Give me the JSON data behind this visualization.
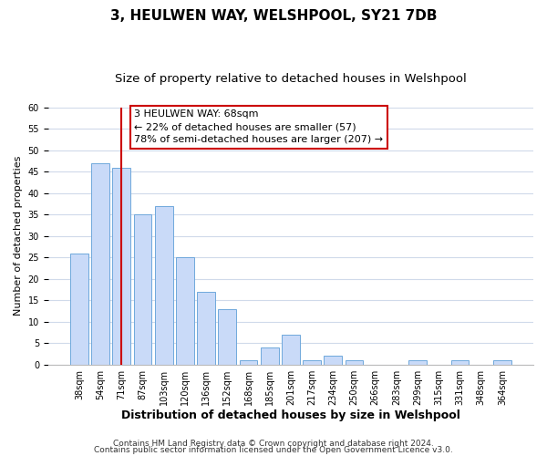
{
  "title": "3, HEULWEN WAY, WELSHPOOL, SY21 7DB",
  "subtitle": "Size of property relative to detached houses in Welshpool",
  "xlabel": "Distribution of detached houses by size in Welshpool",
  "ylabel": "Number of detached properties",
  "bar_labels": [
    "38sqm",
    "54sqm",
    "71sqm",
    "87sqm",
    "103sqm",
    "120sqm",
    "136sqm",
    "152sqm",
    "168sqm",
    "185sqm",
    "201sqm",
    "217sqm",
    "234sqm",
    "250sqm",
    "266sqm",
    "283sqm",
    "299sqm",
    "315sqm",
    "331sqm",
    "348sqm",
    "364sqm"
  ],
  "bar_values": [
    26,
    47,
    46,
    35,
    37,
    25,
    17,
    13,
    1,
    4,
    7,
    1,
    2,
    1,
    0,
    0,
    1,
    0,
    1,
    0,
    1
  ],
  "bar_color": "#c9daf8",
  "bar_edge_color": "#6fa8dc",
  "highlight_index": 2,
  "highlight_color": "#cc0000",
  "annotation_title": "3 HEULWEN WAY: 68sqm",
  "annotation_line1": "← 22% of detached houses are smaller (57)",
  "annotation_line2": "78% of semi-detached houses are larger (207) →",
  "annotation_box_color": "#ffffff",
  "annotation_box_edge": "#cc0000",
  "ylim": [
    0,
    60
  ],
  "yticks": [
    0,
    5,
    10,
    15,
    20,
    25,
    30,
    35,
    40,
    45,
    50,
    55,
    60
  ],
  "footer1": "Contains HM Land Registry data © Crown copyright and database right 2024.",
  "footer2": "Contains public sector information licensed under the Open Government Licence v3.0.",
  "background_color": "#ffffff",
  "grid_color": "#d0daea",
  "title_fontsize": 11,
  "subtitle_fontsize": 9.5,
  "xlabel_fontsize": 9,
  "ylabel_fontsize": 8,
  "tick_fontsize": 7,
  "annotation_fontsize": 8,
  "footer_fontsize": 6.5
}
